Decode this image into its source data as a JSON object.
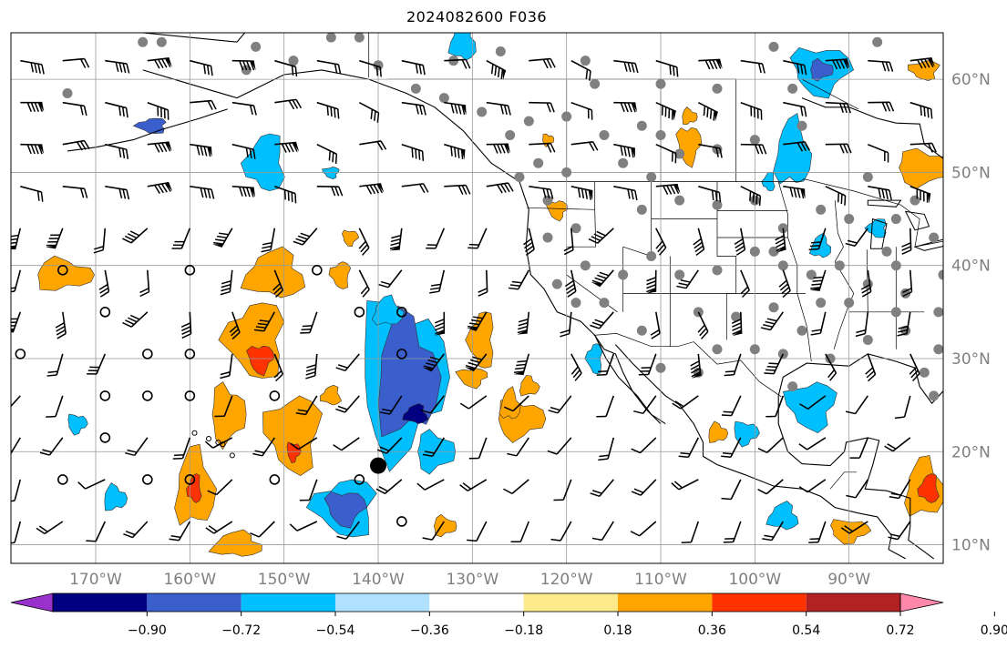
{
  "title": "2024082600 F036",
  "map": {
    "lon_range": [
      -179,
      -80
    ],
    "lat_range": [
      8,
      65
    ],
    "lon_ticks": [
      -170,
      -160,
      -150,
      -140,
      -130,
      -120,
      -110,
      -100,
      -90
    ],
    "lat_ticks": [
      10,
      20,
      30,
      40,
      50,
      60
    ],
    "lon_labels": [
      "170°W",
      "160°W",
      "150°W",
      "140°W",
      "130°W",
      "120°W",
      "110°W",
      "100°W",
      "90°W"
    ],
    "lat_labels": [
      "10°N",
      "20°N",
      "30°N",
      "40°N",
      "50°N",
      "60°N"
    ],
    "grid": true,
    "tick_label_color": "#808080"
  },
  "colorbar": {
    "orientation": "horizontal",
    "extend": "both",
    "levels": [
      "−0.90",
      "−0.72",
      "−0.54",
      "−0.36",
      "−0.18",
      "0.18",
      "0.36",
      "0.54",
      "0.72",
      "0.90"
    ],
    "colors": [
      "#9932cc",
      "#000080",
      "#3a5fcd",
      "#00bfff",
      "#b0e2ff",
      "#ffffff",
      "#fce98a",
      "#ffa500",
      "#ff3300",
      "#b22222",
      "#ff88aa"
    ]
  },
  "field_colors": {
    "light_blue": "#b0e2ff",
    "cyan": "#00bfff",
    "royal_blue": "#3a5fcd",
    "navy": "#000080",
    "light_yellow": "#fce98a",
    "orange": "#ffa500",
    "red_orange": "#ff3300"
  },
  "markers": {
    "station_color": "#808080",
    "storm_center": [
      -140,
      18.5
    ]
  }
}
